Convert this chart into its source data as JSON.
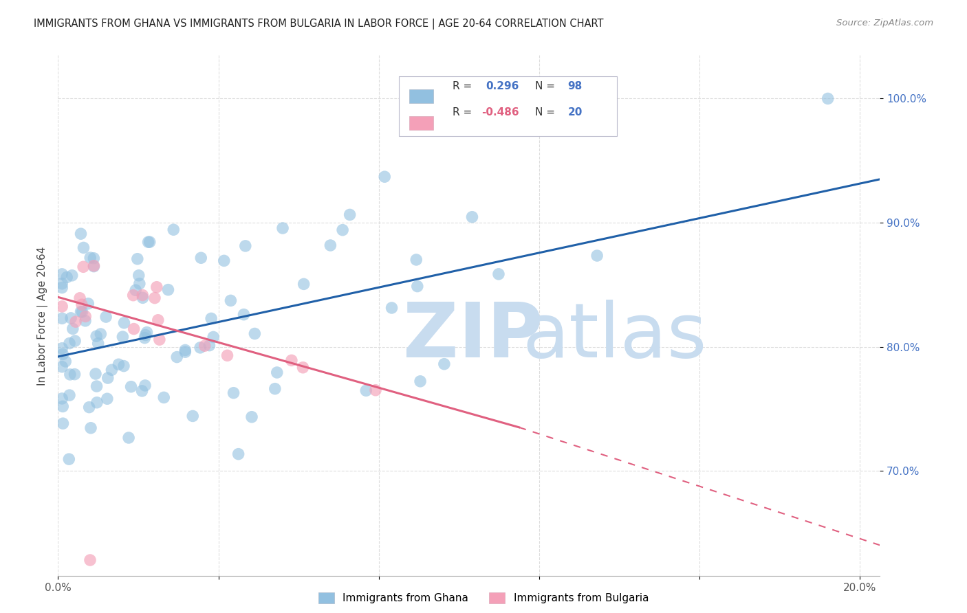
{
  "title": "IMMIGRANTS FROM GHANA VS IMMIGRANTS FROM BULGARIA IN LABOR FORCE | AGE 20-64 CORRELATION CHART",
  "source": "Source: ZipAtlas.com",
  "ylabel": "In Labor Force | Age 20-64",
  "xlim": [
    0.0,
    0.205
  ],
  "ylim": [
    0.615,
    1.035
  ],
  "ghana_R": 0.296,
  "ghana_N": 98,
  "bulgaria_R": -0.486,
  "bulgaria_N": 20,
  "ghana_color": "#92C0E0",
  "bulgaria_color": "#F4A0B8",
  "ghana_line_color": "#2060A8",
  "bulgaria_line_color": "#E06080",
  "ghana_trend": [
    0.0,
    0.205,
    0.792,
    0.935
  ],
  "bulgaria_solid": [
    0.0,
    0.115,
    0.84,
    0.735
  ],
  "bulgaria_dash": [
    0.115,
    0.205,
    0.735,
    0.64
  ],
  "watermark_zip": "ZIP",
  "watermark_atlas": "atlas",
  "watermark_color": "#C8DCEF",
  "background_color": "#FFFFFF",
  "grid_color": "#DDDDDD"
}
